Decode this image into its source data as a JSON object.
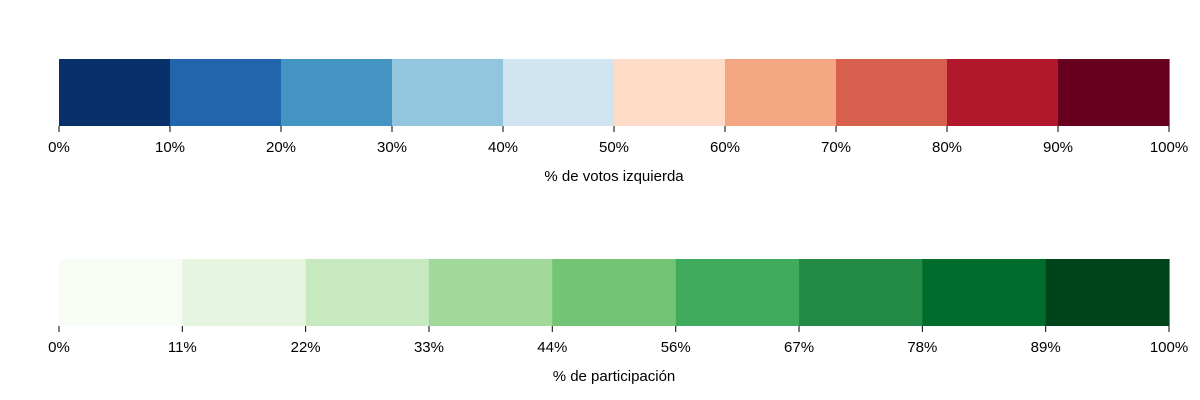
{
  "chart_data": [
    {
      "type": "heatmap",
      "xlabel": "% de votos izquierda",
      "tick_labels": [
        "0%",
        "10%",
        "20%",
        "30%",
        "40%",
        "50%",
        "60%",
        "70%",
        "80%",
        "90%",
        "100%"
      ],
      "bins": [
        0,
        10,
        20,
        30,
        40,
        50,
        60,
        70,
        80,
        90,
        100
      ],
      "xlim": [
        0,
        100
      ],
      "colors": [
        "#08306b",
        "#2166ac",
        "#4393c3",
        "#92c5de",
        "#d1e5f0",
        "#fddbc7",
        "#f4a582",
        "#d6604d",
        "#b2182b",
        "#67001f"
      ]
    },
    {
      "type": "heatmap",
      "xlabel": "% de participación",
      "tick_labels": [
        "0%",
        "11%",
        "22%",
        "33%",
        "44%",
        "56%",
        "67%",
        "78%",
        "89%",
        "100%"
      ],
      "bins": [
        0,
        11.11,
        22.22,
        33.33,
        44.44,
        55.56,
        66.67,
        77.78,
        88.89,
        100
      ],
      "xlim": [
        0,
        100
      ],
      "colors": [
        "#f7fcf5",
        "#e5f5e0",
        "#c7e9c0",
        "#a1d99b",
        "#74c476",
        "#41ab5d",
        "#238b45",
        "#006d2c",
        "#00441b"
      ]
    }
  ]
}
